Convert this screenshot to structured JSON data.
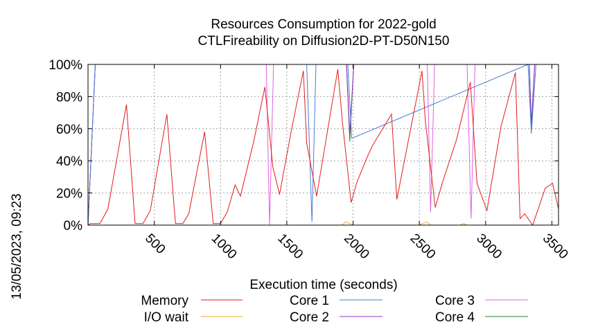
{
  "chart_data": {
    "type": "line",
    "title": "Resources Consumption for 2022-gold",
    "subtitle": "CTLFireability on Diffusion2D-PT-D50N150",
    "xlabel": "Execution time (seconds)",
    "ylabel": "",
    "side_label": "13/05/2023, 09:23",
    "xlim": [
      0,
      3550
    ],
    "ylim": [
      0,
      100
    ],
    "x_ticks": [
      500,
      1000,
      1500,
      2000,
      2500,
      3000,
      3500
    ],
    "x_tick_labels": [
      "500",
      "1000",
      "1500",
      "2000",
      "2500",
      "3000",
      "3500"
    ],
    "y_ticks": [
      0,
      20,
      40,
      60,
      80,
      100
    ],
    "y_tick_labels": [
      "0%",
      "20%",
      "40%",
      "60%",
      "80%",
      "100%"
    ],
    "grid": true,
    "legend_placement": "bottom",
    "series": [
      {
        "name": "Memory",
        "color": "#e41a1c",
        "x": [
          0,
          20,
          90,
          150,
          290,
          355,
          415,
          470,
          595,
          660,
          715,
          760,
          880,
          945,
          1000,
          1050,
          1110,
          1150,
          1250,
          1335,
          1395,
          1445,
          1530,
          1625,
          1650,
          1725,
          1885,
          1920,
          1985,
          2030,
          2110,
          2150,
          2290,
          2330,
          2520,
          2545,
          2620,
          2680,
          2780,
          2885,
          2935,
          3010,
          3115,
          3225,
          3260,
          3295,
          3355,
          3450,
          3505,
          3550
        ],
        "values": [
          0,
          1,
          1,
          10,
          75,
          1,
          1,
          9,
          69,
          1,
          1,
          7,
          58,
          1,
          1,
          8,
          25,
          18,
          52,
          86,
          36,
          19,
          57,
          96,
          51,
          18,
          97,
          64,
          14,
          27,
          43,
          50,
          69,
          16,
          96,
          65,
          11,
          28,
          53,
          89,
          26,
          9,
          61,
          95,
          4,
          7,
          0,
          23,
          26,
          10
        ]
      },
      {
        "name": "I/O wait",
        "color": "#f5a623",
        "x": [
          0,
          1915,
          1945,
          1975,
          2000,
          2495,
          2525,
          2555,
          2585,
          2810,
          2835,
          2860,
          3550
        ],
        "values": [
          0,
          0,
          2,
          1,
          0,
          0,
          1,
          2,
          0,
          0,
          1,
          0,
          0
        ]
      },
      {
        "name": "Core 1",
        "color": "#4a7bd0",
        "x": [
          0,
          55,
          1650,
          1690,
          1720,
          1960,
          1990,
          3320,
          3345,
          3380,
          3550
        ],
        "values": [
          0,
          100,
          100,
          2,
          100,
          100,
          54,
          100,
          57,
          100,
          100
        ]
      },
      {
        "name": "Core 2",
        "color": "#9b30c8",
        "x": [
          0,
          55,
          1950,
          1975,
          2005,
          3330,
          3345,
          3370,
          3550
        ],
        "values": [
          0,
          100,
          100,
          57,
          100,
          100,
          60,
          100,
          100
        ]
      },
      {
        "name": "Core 3",
        "color": "#e060e0",
        "x": [
          0,
          55,
          1345,
          1370,
          1400,
          1985,
          2010,
          2560,
          2585,
          2615,
          2860,
          2890,
          2920,
          3550
        ],
        "values": [
          0,
          100,
          100,
          0,
          100,
          100,
          100,
          100,
          8,
          100,
          100,
          4,
          100,
          100
        ]
      },
      {
        "name": "Core 4",
        "color": "#2e7d32",
        "x": [
          0,
          55,
          1950,
          1975,
          2005,
          3330,
          3345,
          3370,
          3550
        ],
        "values": [
          0,
          100,
          100,
          52,
          100,
          100,
          63,
          100,
          100
        ]
      }
    ]
  }
}
